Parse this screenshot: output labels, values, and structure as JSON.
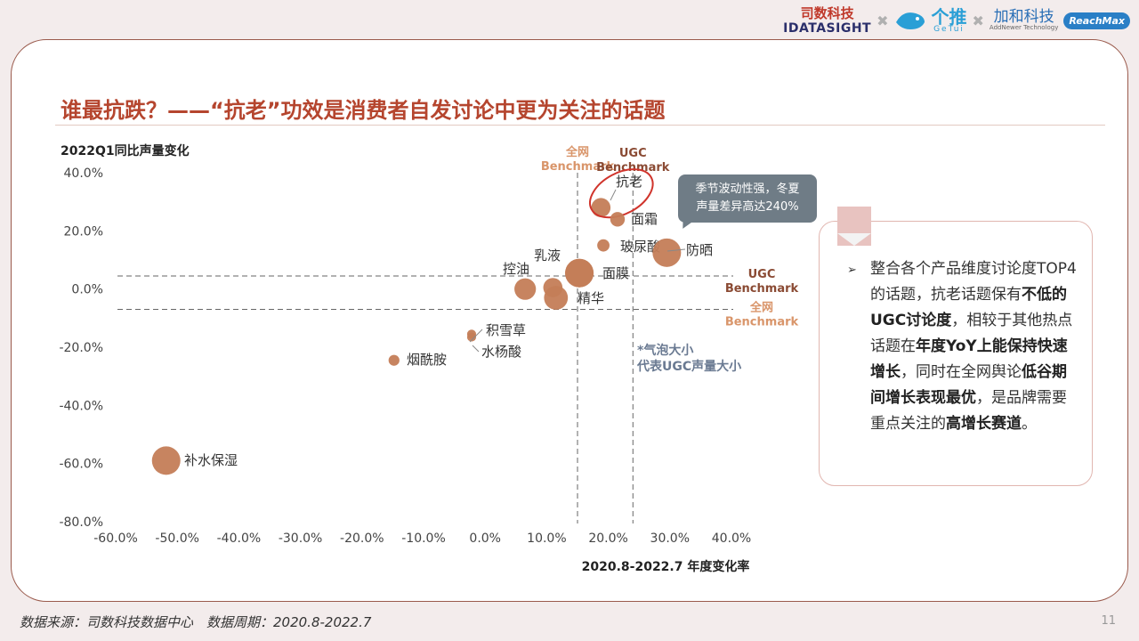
{
  "brands": {
    "idatasight_cn": "司数科技",
    "idatasight_en": "IDATASIGHT",
    "sep": "✖",
    "getui_cn": "个推",
    "getui_en": "GeTui",
    "adhnewer_cn": "加和科技",
    "adhnewer_en": "AddNewer Technology",
    "reachmax": "ReachMax"
  },
  "title": "谁最抗跌？——“抗老”功效是消费者自发讨论中更为关注的话题",
  "tooltip": {
    "line1": "季节波动性强，冬夏",
    "line2": "声量差异高达240%"
  },
  "side_panel": {
    "bullet": "➢",
    "parts": [
      {
        "text": "整合各个产品维度讨论度TOP4的话题，抗老话题保有",
        "bold": false
      },
      {
        "text": "不低的UGC讨论度",
        "bold": true
      },
      {
        "text": "，相较于其他热点话题在",
        "bold": false
      },
      {
        "text": "年度YoY上能保持快速增长",
        "bold": true
      },
      {
        "text": "，同时在全网舆论",
        "bold": false
      },
      {
        "text": "低谷期间增长表现最优",
        "bold": true
      },
      {
        "text": "，是品牌需要重点关注的",
        "bold": false
      },
      {
        "text": "高增长赛道",
        "bold": true
      },
      {
        "text": "。",
        "bold": false
      }
    ]
  },
  "footer": "数据来源：司数科技数据中心　数据周期：2020.8-2022.7",
  "page_number": "11",
  "colors": {
    "title": "#b5452e",
    "bubble": "#c47d57",
    "ugc_benchmark": "#8a4a33",
    "net_benchmark": "#d9956a",
    "tooltip": "#6f7c86"
  },
  "chart_data": {
    "type": "scatter",
    "ylabel": "2022Q1同比声量变化",
    "xlabel": "2020.8-2022.7 年度变化率",
    "xlim": [
      -60,
      40
    ],
    "ylim": [
      -80,
      40
    ],
    "xticks": [
      "-60.0%",
      "-50.0%",
      "-40.0%",
      "-30.0%",
      "-20.0%",
      "-10.0%",
      "0.0%",
      "10.0%",
      "20.0%",
      "30.0%",
      "40.0%"
    ],
    "yticks": [
      "40.0%",
      "20.0%",
      "0.0%",
      "-20.0%",
      "-40.0%",
      "-60.0%",
      "-80.0%"
    ],
    "bubble_note_line1": "*气泡大小",
    "bubble_note_line2": "代表UGC声量大小",
    "benchmarks": [
      {
        "axis": "x",
        "value": 15,
        "label_line1": "全网",
        "label_line2": "Benchmark",
        "kind": "net"
      },
      {
        "axis": "x",
        "value": 24,
        "label_line1": "UGC",
        "label_line2": "Benchmark",
        "kind": "ugc"
      },
      {
        "axis": "y",
        "value": 4.5,
        "label_line1": "UGC",
        "label_line2": "Benchmark",
        "kind": "ugc"
      },
      {
        "axis": "y",
        "value": -7,
        "label_line1": "全网",
        "label_line2": "Benchmark",
        "kind": "net"
      }
    ],
    "points": [
      {
        "label": "抗老",
        "x": 18.8,
        "y": 28,
        "size": 3,
        "highlight": true
      },
      {
        "label": "面霜",
        "x": 21.5,
        "y": 24,
        "size": 2
      },
      {
        "label": "玻尿酸",
        "x": 19.2,
        "y": 15,
        "size": 1.5
      },
      {
        "label": "防晒",
        "x": 29.5,
        "y": 12.5,
        "size": 5
      },
      {
        "label": "乳液",
        "x": 15.3,
        "y": 5.5,
        "size": 5
      },
      {
        "label": "面膜",
        "x": 15.3,
        "y": 5.5,
        "size": 5
      },
      {
        "label": "控油",
        "x": 6.5,
        "y": 0,
        "size": 3.5
      },
      {
        "label": "精华",
        "x": 11.5,
        "y": -3,
        "size": 4
      },
      {
        "label": "",
        "x": 11.0,
        "y": 0.5,
        "size": 3
      },
      {
        "label": "积雪草",
        "x": -2.2,
        "y": -15.5,
        "size": 0.8
      },
      {
        "label": "水杨酸",
        "x": -2.2,
        "y": -16.5,
        "size": 0.8
      },
      {
        "label": "烟酰胺",
        "x": -14.8,
        "y": -24.5,
        "size": 1.2
      },
      {
        "label": "补水保湿",
        "x": -51.8,
        "y": -59,
        "size": 5
      }
    ]
  }
}
